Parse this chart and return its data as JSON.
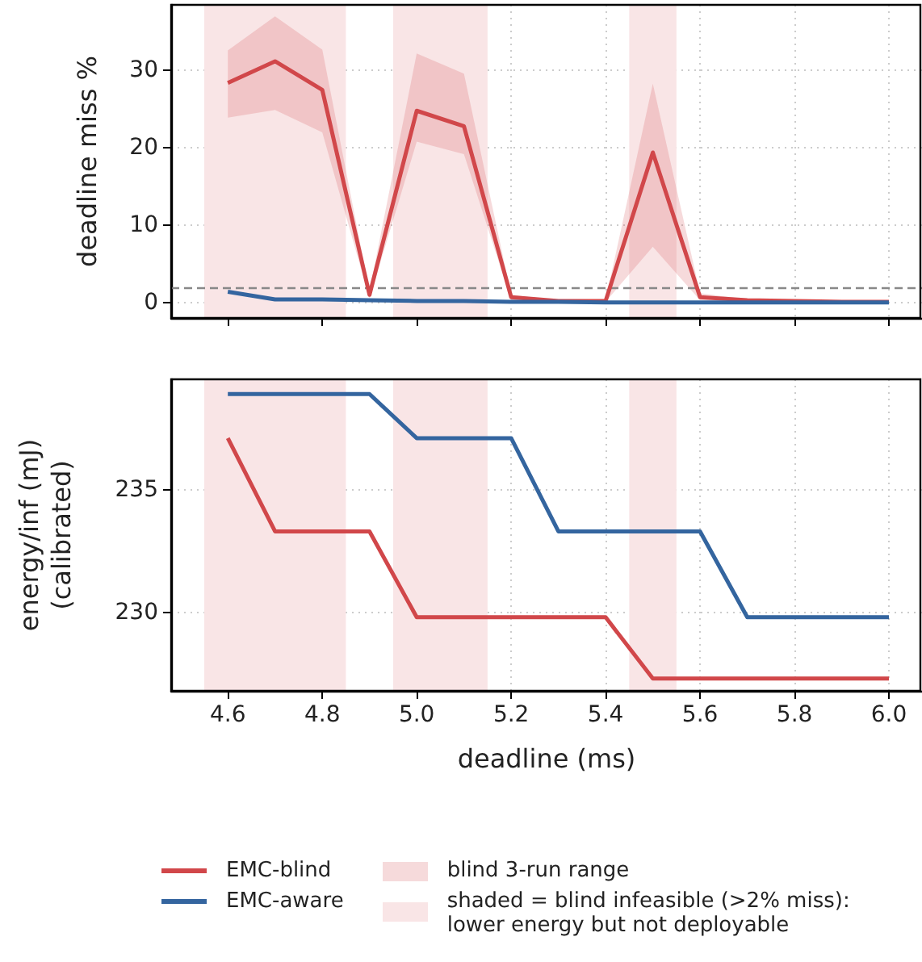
{
  "chart_data": [
    {
      "type": "line",
      "ylabel": "deadline miss %",
      "x": [
        4.6,
        4.7,
        4.8,
        4.9,
        5.0,
        5.1,
        5.2,
        5.3,
        5.4,
        5.5,
        5.6,
        5.7,
        5.8,
        5.9,
        6.0
      ],
      "series": [
        {
          "color": "#d1474a",
          "values": [
            28.4,
            31.2,
            27.5,
            1.0,
            24.8,
            22.8,
            0.7,
            0.2,
            0.2,
            19.4,
            0.7,
            0.3,
            0.2,
            0.1,
            0.1
          ],
          "lower": [
            23.9,
            24.9,
            22.0,
            0.5,
            20.8,
            19.2,
            0.3,
            0.1,
            0.1,
            7.2,
            0.3,
            0.1,
            0.1,
            0.0,
            0.0
          ],
          "upper": [
            32.6,
            37.0,
            32.7,
            1.5,
            32.2,
            29.6,
            1.0,
            0.3,
            0.3,
            28.3,
            1.2,
            0.4,
            0.3,
            0.2,
            0.2
          ]
        },
        {
          "color": "#34659f",
          "values": [
            1.4,
            0.4,
            0.4,
            0.3,
            0.2,
            0.2,
            0.1,
            0.1,
            0.0,
            0.0,
            0.0,
            0.0,
            0.0,
            0.0,
            0.0
          ]
        }
      ],
      "xlim": [
        4.48,
        6.07
      ],
      "xticks": [
        4.6,
        4.8,
        5.0,
        5.2,
        5.4,
        5.6,
        5.8,
        6.0
      ],
      "ylim": [
        -2,
        38.5
      ],
      "yticks": [
        0,
        10,
        20,
        30
      ],
      "tick_labels": "y",
      "grid": true,
      "legend": false,
      "ref_lines": [
        {
          "axis": "y",
          "value": 2,
          "color": "#888888",
          "line_style": "dashed"
        }
      ],
      "bands": [
        {
          "axis": "x",
          "from": 4.55,
          "to": 4.85,
          "color": "#f9e5e6"
        },
        {
          "axis": "x",
          "from": 4.95,
          "to": 5.15,
          "color": "#f9e5e6"
        },
        {
          "axis": "x",
          "from": 5.45,
          "to": 5.55,
          "color": "#f9e5e6"
        }
      ],
      "annotations": [
        "blind 3-run range"
      ]
    },
    {
      "type": "line",
      "xlabel": "deadline (ms)",
      "ylabel": "energy/inf (mJ)\n(calibrated)",
      "x": [
        4.6,
        4.7,
        4.8,
        4.9,
        5.0,
        5.1,
        5.2,
        5.3,
        5.4,
        5.5,
        5.6,
        5.7,
        5.8,
        5.9,
        6.0
      ],
      "series": [
        {
          "name": "EMC-blind",
          "color": "#d1474a",
          "values": [
            237.1,
            233.3,
            233.3,
            233.3,
            229.8,
            229.8,
            229.8,
            229.8,
            229.8,
            227.3,
            227.3,
            227.3,
            227.3,
            227.3,
            227.3
          ]
        },
        {
          "name": "EMC-aware",
          "color": "#34659f",
          "values": [
            238.9,
            238.9,
            238.9,
            238.9,
            237.1,
            237.1,
            237.1,
            233.3,
            233.3,
            233.3,
            233.3,
            229.8,
            229.8,
            229.8,
            229.8
          ]
        }
      ],
      "xlim": [
        4.48,
        6.07
      ],
      "xticks": [
        4.6,
        4.8,
        {
          "value": 5.0,
          "label": "5.0"
        },
        5.2,
        5.4,
        5.6,
        5.8,
        {
          "value": 6.0,
          "label": "6.0"
        }
      ],
      "ylim": [
        226.8,
        239.5
      ],
      "yticks": [
        230,
        235
      ],
      "grid": true,
      "legend": "bottom",
      "bands": [
        {
          "axis": "x",
          "from": 4.55,
          "to": 4.85,
          "color": "#f9e5e6",
          "label": "shaded = blind infeasible (>2% miss):\nlower energy but not deployable"
        },
        {
          "axis": "x",
          "from": 4.95,
          "to": 5.15,
          "color": "#f9e5e6"
        },
        {
          "axis": "x",
          "from": 5.45,
          "to": 5.55,
          "color": "#f9e5e6"
        }
      ]
    }
  ]
}
